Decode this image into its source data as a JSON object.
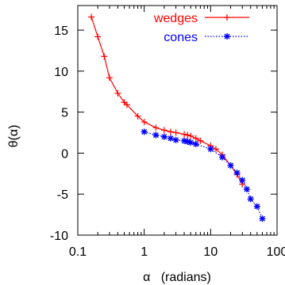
{
  "chart_data": {
    "type": "line",
    "title": "",
    "xlabel": "α   (radians)",
    "ylabel": "θ(α)",
    "xscale": "log",
    "xlim": [
      0.1,
      100
    ],
    "ylim": [
      -10,
      18
    ],
    "xticks": [
      0.1,
      1,
      10,
      100
    ],
    "xtick_labels": [
      "0.1",
      "1",
      "10",
      "100"
    ],
    "yticks": [
      -10,
      -5,
      0,
      5,
      10,
      15
    ],
    "ytick_labels": [
      "-10",
      "-5",
      "0",
      "5",
      "10",
      "15"
    ],
    "grid": false,
    "legend_position": "top-right",
    "series": [
      {
        "name": "wedges",
        "color": "#ff0000",
        "line_style": "solid",
        "marker": "plus",
        "x": [
          0.16,
          0.2,
          0.25,
          0.3,
          0.4,
          0.5,
          0.55,
          0.8,
          1.0,
          1.5,
          2.0,
          2.5,
          3.0,
          4.0,
          4.5,
          5.0,
          6.0,
          7.0,
          10.0,
          12.0,
          15.0,
          20.0,
          25.0,
          30.0
        ],
        "y": [
          16.6,
          14.2,
          11.8,
          9.2,
          7.3,
          6.2,
          5.9,
          4.5,
          3.8,
          3.1,
          2.8,
          2.6,
          2.5,
          2.3,
          2.2,
          2.1,
          1.8,
          1.5,
          0.9,
          0.5,
          -0.2,
          -1.5,
          -2.6,
          -3.8
        ]
      },
      {
        "name": "cones",
        "color": "#0000ff",
        "line_style": "dotted",
        "marker": "star",
        "x": [
          1.0,
          1.5,
          2.0,
          2.5,
          3.0,
          4.0,
          4.5,
          5.0,
          6.0,
          10.0,
          15.0,
          20.0,
          25.0,
          30.0,
          35.0,
          40.0,
          50.0,
          60.0
        ],
        "y": [
          2.6,
          2.2,
          2.0,
          1.8,
          1.6,
          1.5,
          1.4,
          1.3,
          1.1,
          0.5,
          -0.5,
          -1.5,
          -2.4,
          -3.3,
          -4.4,
          -5.6,
          -6.5,
          -8.0
        ]
      }
    ]
  }
}
